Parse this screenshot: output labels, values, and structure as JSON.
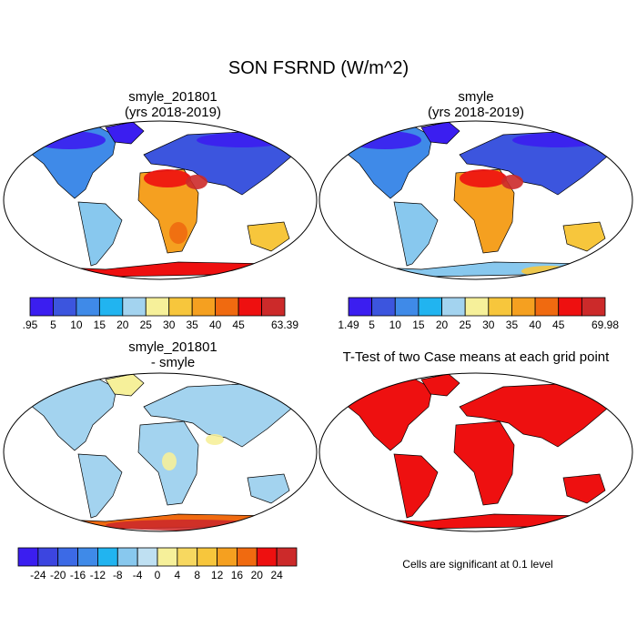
{
  "figure": {
    "title": "SON FSRND (W/m^2)",
    "note": "Cells are significant at 0.1 level"
  },
  "panels": [
    {
      "id": "p1",
      "title1": "smyle_201801",
      "title2": "(yrs 2018-2019)"
    },
    {
      "id": "p2",
      "title1": "smyle",
      "title2": "(yrs 2018-2019)"
    },
    {
      "id": "p3",
      "title1": "smyle_201801",
      "title2": "- smyle"
    },
    {
      "id": "p4",
      "title1": "T-Test of two Case means at each grid point",
      "title2": ""
    }
  ],
  "chart_data": [
    {
      "type": "heatmap",
      "title": "smyle_201801 (yrs 2018-2019)",
      "colorbar": {
        "labels": [
          ".95",
          "5",
          "10",
          "15",
          "20",
          "25",
          "30",
          "35",
          "40",
          "45",
          "63.39"
        ],
        "colors": [
          "#3b1ef0",
          "#3c55de",
          "#3f8ae8",
          "#21b4f0",
          "#a3d3ef",
          "#f6f09a",
          "#f7c63c",
          "#f5a020",
          "#f06a10",
          "#ee1010",
          "#cc2a2a"
        ]
      }
    },
    {
      "type": "heatmap",
      "title": "smyle (yrs 2018-2019)",
      "colorbar": {
        "labels": [
          "1.49",
          "5",
          "10",
          "15",
          "20",
          "25",
          "30",
          "35",
          "40",
          "45",
          "69.98"
        ],
        "colors": [
          "#3b1ef0",
          "#3c55de",
          "#3f8ae8",
          "#21b4f0",
          "#a3d3ef",
          "#f6f09a",
          "#f7c63c",
          "#f5a020",
          "#f06a10",
          "#ee1010",
          "#cc2a2a"
        ]
      }
    },
    {
      "type": "heatmap",
      "title": "smyle_201801 - smyle",
      "colorbar": {
        "labels": [
          "-24",
          "-20",
          "-16",
          "-12",
          "-8",
          "-4",
          "0",
          "4",
          "8",
          "12",
          "16",
          "20",
          "24"
        ],
        "colors": [
          "#3b1ef0",
          "#3c45e0",
          "#3c6ae6",
          "#3f8ae8",
          "#21b4f0",
          "#88c8ee",
          "#bfe0f2",
          "#f6f09a",
          "#f7d860",
          "#f7c63c",
          "#f5a020",
          "#f06a10",
          "#ee1010",
          "#cc2a2a"
        ]
      }
    },
    {
      "type": "heatmap",
      "title": "T-Test of two Case means at each grid point",
      "significance_color": "#ee1010"
    }
  ]
}
